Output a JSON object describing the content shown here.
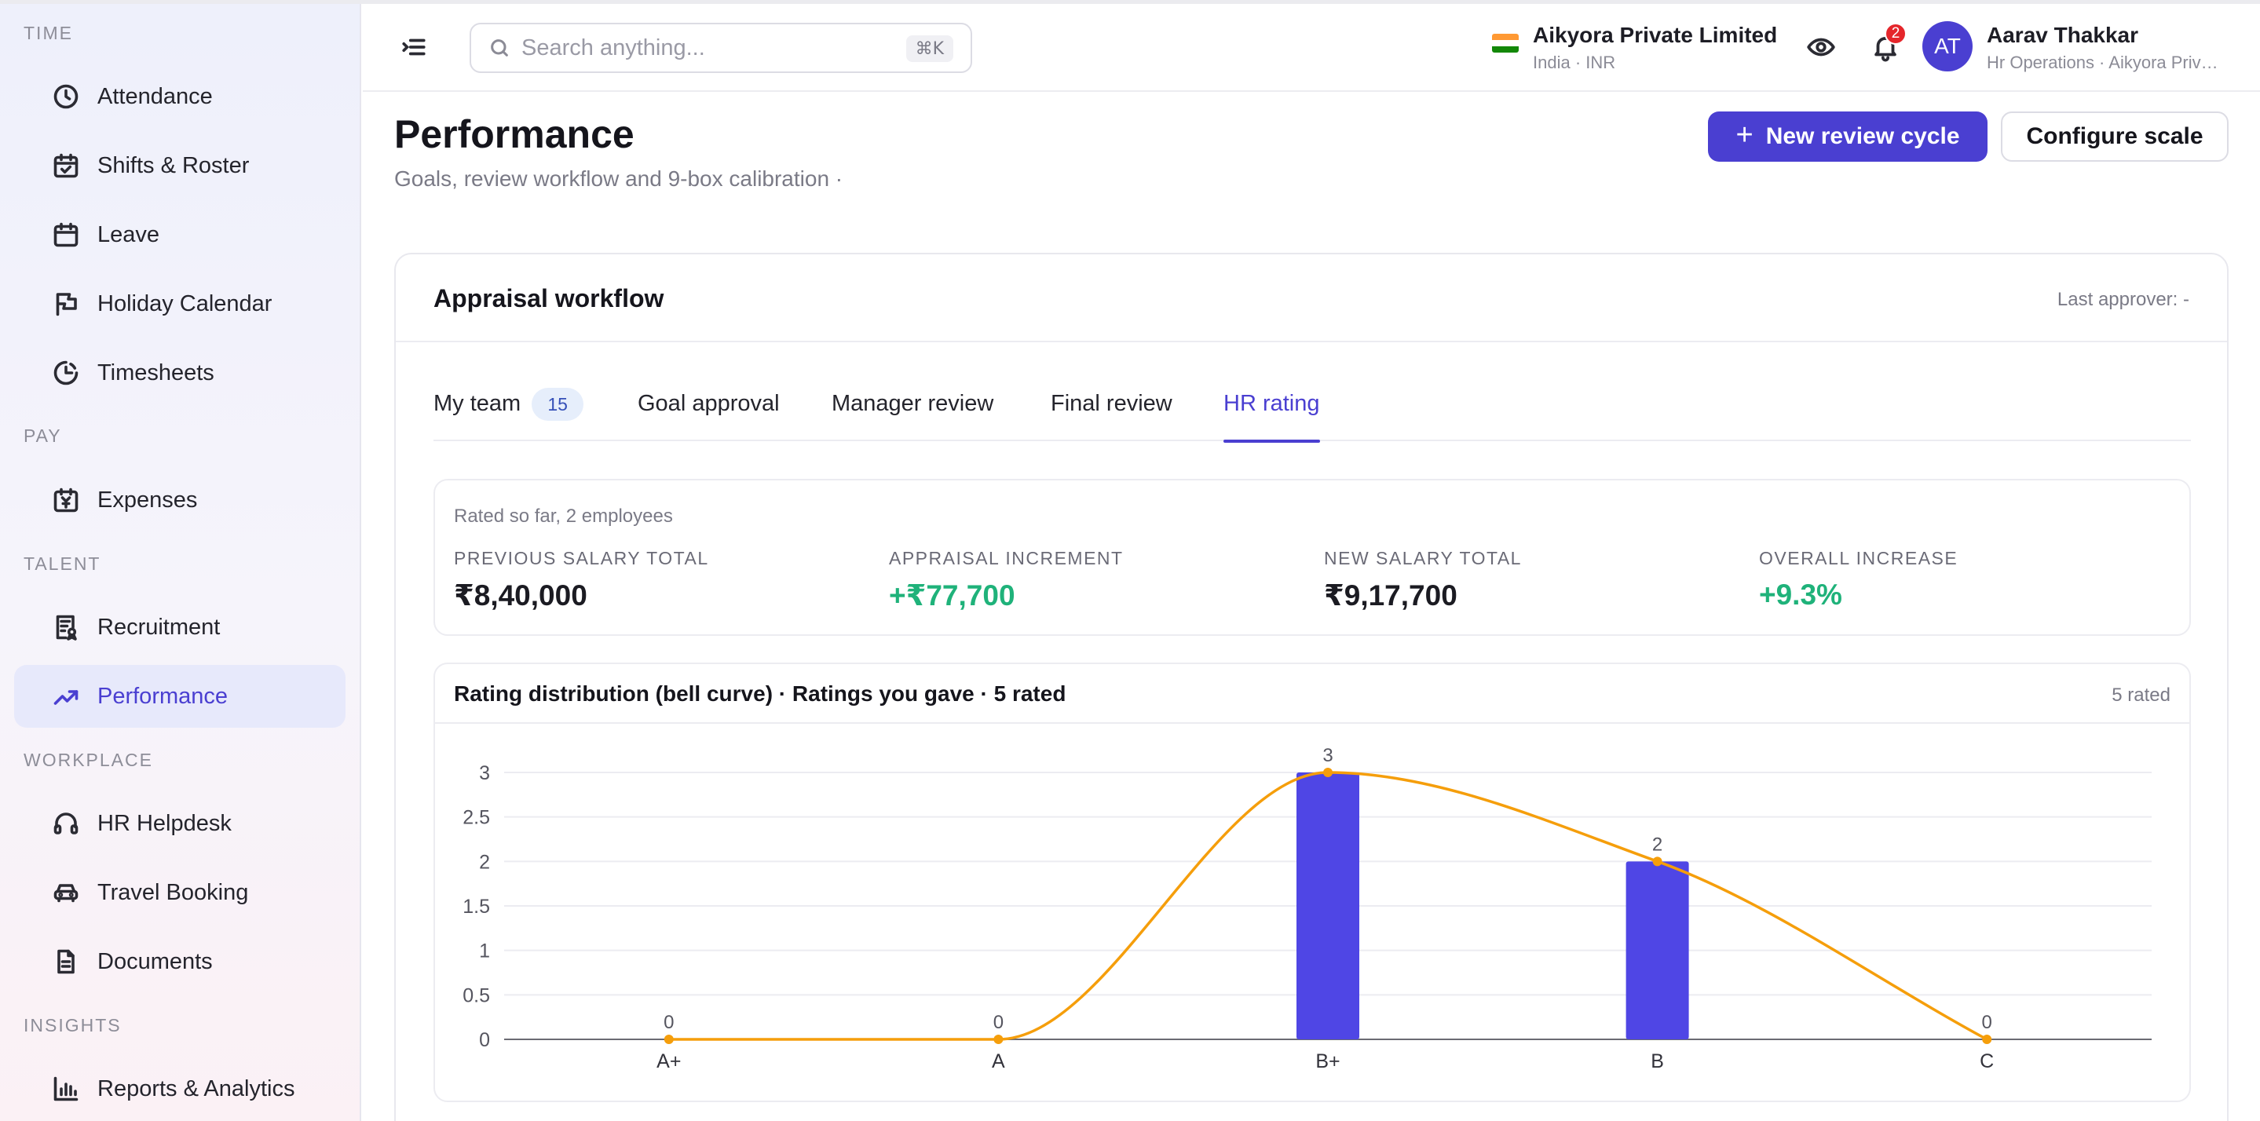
{
  "sidebar": {
    "sections": [
      {
        "label": "TIME",
        "items": [
          {
            "label": "Attendance",
            "icon": "clock-icon"
          },
          {
            "label": "Shifts & Roster",
            "icon": "calendar-check-icon"
          },
          {
            "label": "Leave",
            "icon": "calendar-icon"
          },
          {
            "label": "Holiday Calendar",
            "icon": "flag-icon"
          },
          {
            "label": "Timesheets",
            "icon": "clock-history-icon"
          }
        ]
      },
      {
        "label": "PAY",
        "items": [
          {
            "label": "Expenses",
            "icon": "yen-receipt-icon"
          }
        ]
      },
      {
        "label": "TALENT",
        "items": [
          {
            "label": "Recruitment",
            "icon": "resume-icon"
          },
          {
            "label": "Performance",
            "icon": "trending-up-icon",
            "active": true
          }
        ]
      },
      {
        "label": "WORKPLACE",
        "items": [
          {
            "label": "HR Helpdesk",
            "icon": "headset-icon"
          },
          {
            "label": "Travel Booking",
            "icon": "car-icon"
          },
          {
            "label": "Documents",
            "icon": "document-icon"
          }
        ]
      },
      {
        "label": "INSIGHTS",
        "items": [
          {
            "label": "Reports & Analytics",
            "icon": "bar-chart-icon"
          }
        ]
      }
    ]
  },
  "header": {
    "search_placeholder": "Search anything...",
    "search_shortcut": "⌘K",
    "company_name": "Aikyora Private Limited",
    "company_sub": "India · INR",
    "notification_count": "2",
    "user_initials": "AT",
    "user_name": "Aarav Thakkar",
    "user_sub": "Hr Operations · Aikyora Private Limited"
  },
  "page": {
    "title": "Performance",
    "subtitle": "Goals, review workflow and 9-box calibration ·",
    "primary_button": "New review cycle",
    "secondary_button": "Configure scale"
  },
  "workflow": {
    "title": "Appraisal workflow",
    "last_approver": "Last approver: -",
    "tabs": [
      {
        "label": "My team",
        "count": "15"
      },
      {
        "label": "Goal approval"
      },
      {
        "label": "Manager review"
      },
      {
        "label": "Final review"
      },
      {
        "label": "HR rating",
        "active": true
      }
    ],
    "summary": {
      "caption": "Rated so far, 2 employees",
      "stats": [
        {
          "label": "PREVIOUS SALARY TOTAL",
          "value": "₹8,40,000"
        },
        {
          "label": "APPRAISAL INCREMENT",
          "value": "+₹77,700",
          "positive": true
        },
        {
          "label": "NEW SALARY TOTAL",
          "value": "₹9,17,700"
        },
        {
          "label": "OVERALL INCREASE",
          "value": "+9.3%",
          "positive": true
        }
      ]
    },
    "chart_title": "Rating distribution (bell curve) · Ratings you gave · 5 rated",
    "chart_meta": "5 rated"
  },
  "chart_data": {
    "type": "bar",
    "title": "Rating distribution (bell curve) · Ratings you gave · 5 rated",
    "categories": [
      "A+",
      "A",
      "B+",
      "B",
      "C"
    ],
    "values": [
      0,
      0,
      3,
      2,
      0
    ],
    "overlay_curve": [
      0,
      0,
      3,
      2,
      0
    ],
    "y_ticks": [
      "0",
      "0.5",
      "1",
      "1.5",
      "2",
      "2.5",
      "3"
    ],
    "ylim": [
      0,
      3
    ],
    "grid": true,
    "colors": {
      "bar": "#4f46e5",
      "curve": "#f59e0b",
      "primary": "#4a3fd1",
      "positive": "#1fb27a"
    }
  }
}
